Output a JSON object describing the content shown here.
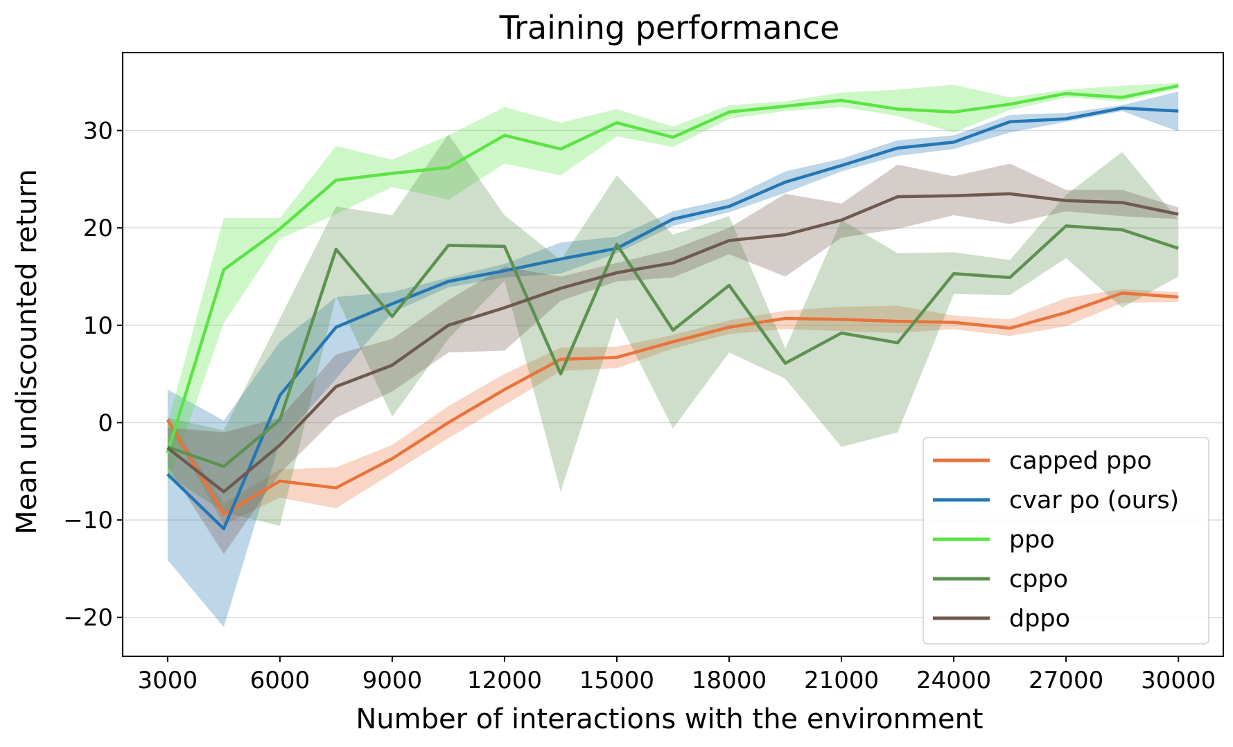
{
  "chart_data": {
    "type": "line",
    "title": "Training performance",
    "xlabel": "Number of interactions with the environment",
    "ylabel": "Mean undiscounted return",
    "xlim": [
      1800,
      31200
    ],
    "ylim": [
      -24,
      38
    ],
    "xticks": [
      3000,
      6000,
      9000,
      12000,
      15000,
      18000,
      21000,
      24000,
      27000,
      30000
    ],
    "xtick_labels": [
      "3000",
      "6000",
      "9000",
      "12000",
      "15000",
      "18000",
      "21000",
      "24000",
      "27000",
      "30000"
    ],
    "yticks": [
      -20,
      -10,
      0,
      10,
      20,
      30
    ],
    "ytick_labels": [
      "−20",
      "−10",
      "0",
      "10",
      "20",
      "30"
    ],
    "grid": "horizontal",
    "legend_position": "lower-right",
    "x": [
      3000,
      4500,
      6000,
      7500,
      9000,
      10500,
      12000,
      13500,
      15000,
      16500,
      18000,
      19500,
      21000,
      22500,
      24000,
      25500,
      27000,
      28500,
      30000
    ],
    "series": [
      {
        "name": "capped ppo",
        "color": "#e8743b",
        "values": [
          0.3,
          -9.4,
          -6.0,
          -6.7,
          -3.7,
          0.0,
          3.4,
          6.5,
          6.7,
          8.3,
          9.8,
          10.7,
          10.6,
          10.4,
          10.3,
          9.7,
          11.3,
          13.3,
          12.9
        ],
        "lower": [
          0.0,
          -10.5,
          -7.7,
          -8.8,
          -5.2,
          -1.6,
          1.8,
          5.3,
          5.6,
          7.6,
          9.1,
          9.6,
          9.4,
          9.2,
          9.6,
          8.9,
          9.9,
          12.3,
          12.4
        ],
        "upper": [
          0.6,
          -8.3,
          -4.8,
          -4.6,
          -2.3,
          1.7,
          5.0,
          7.7,
          7.8,
          9.0,
          10.5,
          11.5,
          11.9,
          12.0,
          11.0,
          10.6,
          12.8,
          13.7,
          13.4
        ]
      },
      {
        "name": "cvar po (ours)",
        "color": "#2477b4",
        "values": [
          -5.3,
          -10.9,
          2.8,
          9.8,
          12.2,
          14.5,
          15.6,
          16.8,
          17.9,
          20.9,
          22.2,
          24.7,
          26.4,
          28.2,
          28.8,
          30.9,
          31.2,
          32.3,
          32.0
        ],
        "lower": [
          -14.1,
          -21.0,
          -2.0,
          4.5,
          11.3,
          13.9,
          14.9,
          15.3,
          17.4,
          20.2,
          21.6,
          23.6,
          25.8,
          27.4,
          28.1,
          29.8,
          30.9,
          32.0,
          29.9
        ],
        "upper": [
          3.4,
          0.2,
          8.3,
          12.9,
          13.4,
          14.9,
          16.3,
          18.5,
          19.1,
          21.7,
          23.0,
          25.8,
          27.1,
          29.0,
          29.5,
          31.6,
          31.8,
          32.6,
          34.0
        ]
      },
      {
        "name": "ppo",
        "color": "#5ae444",
        "values": [
          -3.1,
          15.7,
          19.9,
          24.9,
          25.6,
          26.2,
          29.5,
          28.1,
          30.8,
          29.3,
          31.9,
          32.5,
          33.1,
          32.2,
          31.9,
          32.7,
          33.8,
          33.4,
          34.6
        ],
        "lower": [
          -6.3,
          10.2,
          18.9,
          21.4,
          24.2,
          22.9,
          26.6,
          25.4,
          29.4,
          28.3,
          31.2,
          32.0,
          32.4,
          31.5,
          29.8,
          32.1,
          33.4,
          33.0,
          34.3
        ],
        "upper": [
          -0.1,
          21.0,
          21.0,
          28.4,
          27.0,
          29.5,
          32.4,
          30.8,
          32.2,
          30.4,
          32.6,
          33.0,
          33.9,
          34.2,
          34.7,
          33.4,
          34.2,
          34.6,
          34.9
        ]
      },
      {
        "name": "cppo",
        "color": "#5d9150",
        "values": [
          -2.5,
          -4.5,
          0.3,
          17.8,
          10.9,
          18.2,
          18.1,
          5.0,
          18.3,
          9.5,
          14.1,
          6.1,
          9.2,
          8.2,
          15.3,
          14.9,
          20.2,
          19.8,
          17.9
        ],
        "lower": [
          -5.4,
          -9.2,
          -10.6,
          13.0,
          0.6,
          8.6,
          14.6,
          -7.1,
          10.8,
          -0.6,
          7.2,
          4.5,
          -2.5,
          -1.0,
          13.2,
          13.1,
          16.9,
          11.8,
          15.0
        ],
        "upper": [
          0.5,
          -0.8,
          10.7,
          22.2,
          21.3,
          29.6,
          21.3,
          16.7,
          25.4,
          19.3,
          21.2,
          7.6,
          20.8,
          17.4,
          17.5,
          16.7,
          23.4,
          27.8,
          20.8
        ]
      },
      {
        "name": "dppo",
        "color": "#6f5a4f",
        "values": [
          -2.6,
          -7.1,
          -2.3,
          3.7,
          5.9,
          10.0,
          11.8,
          13.8,
          15.4,
          16.4,
          18.7,
          19.3,
          20.8,
          23.2,
          23.3,
          23.5,
          22.8,
          22.6,
          21.4
        ],
        "lower": [
          -4.5,
          -13.5,
          -5.2,
          0.5,
          3.2,
          7.2,
          7.4,
          12.5,
          14.5,
          14.9,
          17.3,
          15.0,
          19.0,
          19.9,
          21.3,
          20.4,
          21.7,
          21.2,
          20.9
        ],
        "upper": [
          -0.5,
          -1.0,
          0.5,
          7.0,
          8.6,
          12.6,
          16.0,
          15.0,
          16.4,
          17.8,
          20.0,
          23.5,
          22.5,
          26.5,
          25.3,
          26.6,
          23.9,
          23.9,
          22.1
        ]
      }
    ]
  }
}
